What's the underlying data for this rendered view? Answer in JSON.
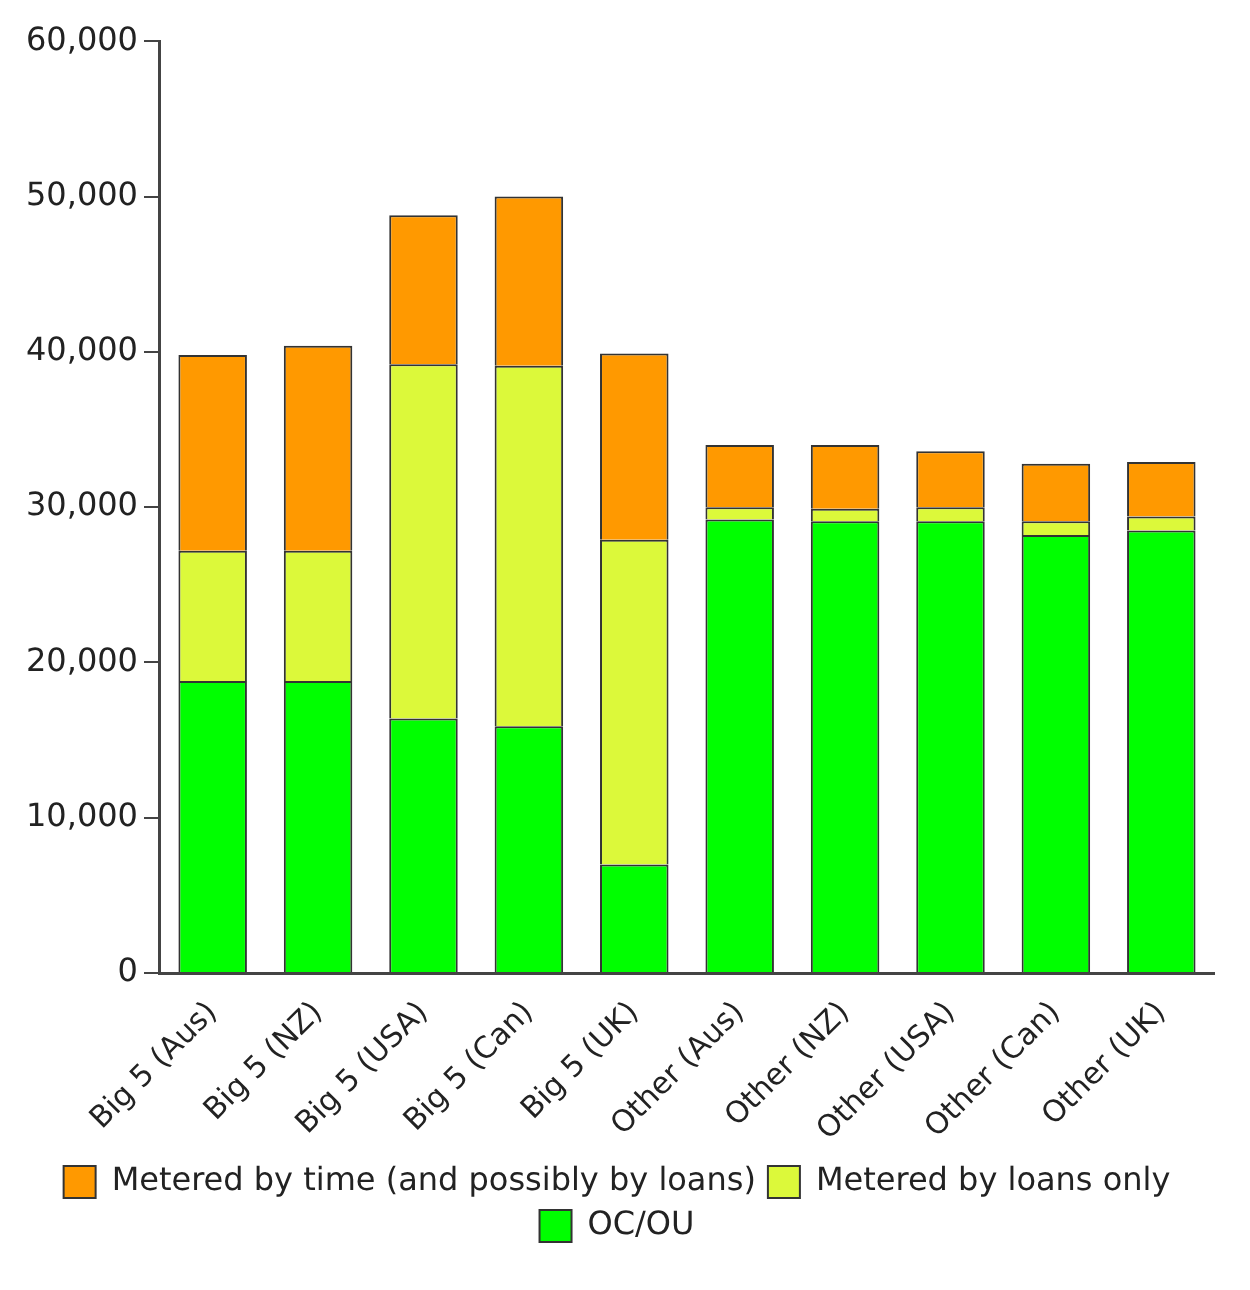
{
  "chart_data": {
    "type": "bar",
    "stacked": true,
    "categories": [
      "Big 5 (Aus)",
      "Big 5 (NZ)",
      "Big 5 (USA)",
      "Big 5 (Can)",
      "Big 5 (UK)",
      "Other (Aus)",
      "Other (NZ)",
      "Other (USA)",
      "Other (Can)",
      "Other (UK)"
    ],
    "series": [
      {
        "name": "OC/OU",
        "color": "#00ff00",
        "values": [
          18800,
          18800,
          16400,
          15900,
          7000,
          29200,
          29100,
          29100,
          28200,
          28500
        ]
      },
      {
        "name": "Metered by loans only",
        "color": "#dcf93a",
        "values": [
          8400,
          8400,
          22800,
          23200,
          20900,
          800,
          800,
          900,
          900,
          900
        ]
      },
      {
        "name": "Metered by time (and possibly by loans)",
        "color": "#ff9900",
        "values": [
          12600,
          13200,
          9600,
          10900,
          12000,
          4000,
          4100,
          3600,
          3700,
          3500
        ]
      }
    ],
    "ylim": [
      0,
      60000
    ],
    "yticks": [
      0,
      {
        "value": 10000,
        "label": "10,000"
      },
      {
        "value": 20000,
        "label": "20,000"
      },
      {
        "value": 30000,
        "label": "30,000"
      },
      {
        "value": 40000,
        "label": "40,000"
      },
      {
        "value": 50000,
        "label": "50,000"
      },
      {
        "value": 60000,
        "label": "60,000"
      }
    ],
    "grid": false,
    "legend": "bottom"
  }
}
